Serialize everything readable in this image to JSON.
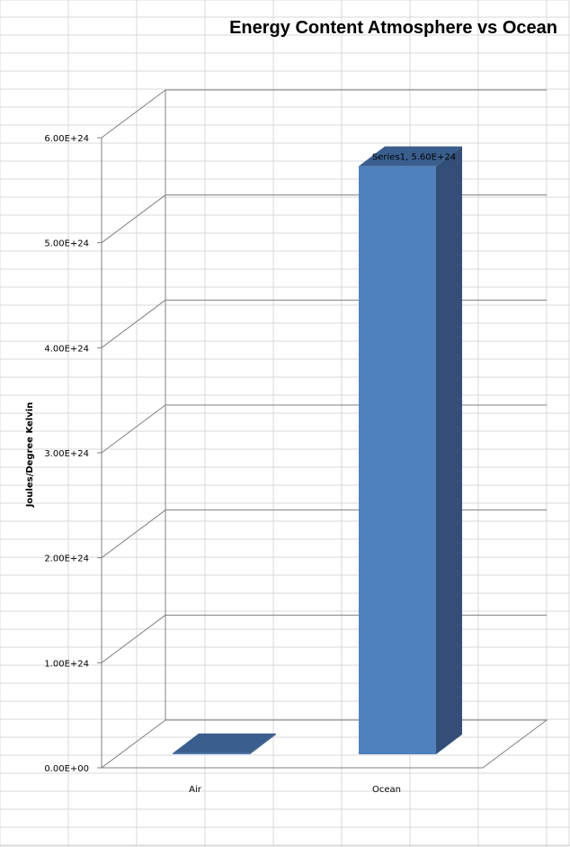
{
  "chart_data": {
    "type": "bar",
    "title": "Energy Content Atmosphere vs Ocean",
    "xlabel": "",
    "ylabel": "Joules/Degree Kelvin",
    "categories": [
      "Air",
      "Ocean"
    ],
    "series": [
      {
        "name": "Series1",
        "values": [
          1e+22,
          5.6e+24
        ],
        "color": "#4f81bd"
      }
    ],
    "ylim": [
      0,
      6e+24
    ],
    "y_ticks": [
      "0.00E+00",
      "1.00E+24",
      "2.00E+24",
      "3.00E+24",
      "4.00E+24",
      "5.00E+24",
      "6.00E+24"
    ],
    "data_labels": [
      "",
      "Series1, 5.60E+24"
    ],
    "grid": true,
    "legend": "none",
    "style": "3d-column",
    "colors": {
      "front": "#4f81bd",
      "side": "#344f77",
      "top": "#3a5f8f",
      "grid": "#808080",
      "sheet_grid": "#d9d9d9"
    }
  }
}
